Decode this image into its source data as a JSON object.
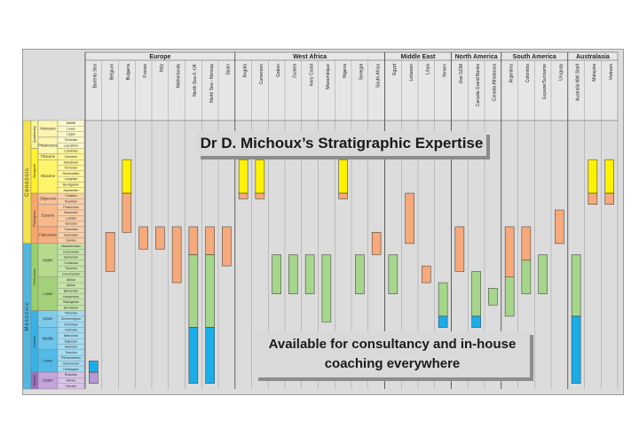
{
  "headline": "Dr D. Michoux’s Stratigraphic Expertise",
  "consult_line1": "Available for consultancy and in-house",
  "consult_line2": "coaching everywhere",
  "regions": [
    {
      "name": "Europe",
      "countries": [
        "Barents Sea",
        "Belgium",
        "Bulgaria",
        "France",
        "Italy",
        "Netherlands",
        "North Sea 6- UK",
        "North Sea - Norway",
        "Spain"
      ]
    },
    {
      "name": "West Africa",
      "countries": [
        "Angola",
        "Cameroon",
        "Gabon",
        "Guinea",
        "Ivory Coast",
        "Mozambique",
        "Nigeria",
        "Senegal",
        "South Africa"
      ]
    },
    {
      "name": "Middle East",
      "countries": [
        "Egypt",
        "Lebanon",
        "Libya",
        "Yemen"
      ]
    },
    {
      "name": "North America",
      "countries": [
        "Use GOM",
        "Canada Grand Banks",
        "Canada Athabasca"
      ]
    },
    {
      "name": "South America",
      "countries": [
        "Argentina",
        "Colombia",
        "Guyane/Suriname",
        "Uruguay"
      ]
    },
    {
      "name": "Australasia",
      "countries": [
        "Australia NW Shelf",
        "Malaysia",
        "Vietnam"
      ]
    }
  ],
  "eras": [
    {
      "name": "Cenozoic",
      "color": "#f4e34a"
    },
    {
      "name": "Mesozoic",
      "color": "#4fb7e0"
    }
  ],
  "periods": [
    {
      "name": "Quaternary",
      "color": "#f9f39a"
    },
    {
      "name": "Neogene",
      "color": "#fff22a"
    },
    {
      "name": "Paleogene",
      "color": "#f6a66b"
    },
    {
      "name": "Cretaceous",
      "color": "#9ccf6a"
    },
    {
      "name": "Jurassic",
      "color": "#3ab1e4"
    },
    {
      "name": "Triassic",
      "color": "#9e6fbb"
    }
  ],
  "epochs": [
    "Holocene",
    "Pleistocene",
    "Pliocene",
    "Miocene",
    "Oligocene",
    "Eocene",
    "Paleocene",
    "Upper",
    "Lower",
    "Upper",
    "Middle",
    "Lower",
    "Upper"
  ],
  "stages": [
    "Middle",
    "Lower",
    "Upper",
    "Tortonian",
    "Lacustrine",
    "Calabrian",
    "Zanclean",
    "Messinian",
    "Tortonian",
    "Serravallian",
    "Langhian",
    "Burdigalian",
    "Aquitanian",
    "Chattian",
    "Rupelian",
    "Priabonian",
    "Bartonian",
    "Lutetian",
    "Ypresian",
    "Thanetian",
    "Selandian",
    "Danian",
    "Maastrichtian",
    "Campanian",
    "Santonian",
    "Coniacian",
    "Turonian",
    "Cenomanian",
    "Albian",
    "Aptian",
    "Barremian",
    "Hauterivian",
    "Valanginian",
    "Berriasian",
    "Tithonian",
    "Kimmeridgian",
    "Oxfordian",
    "Callovian",
    "Bathonian",
    "Bajocian",
    "Aalenian",
    "Toarcian",
    "Pliensbachian",
    "Sinemurian",
    "Hettangian",
    "Rhaetian",
    "Norian",
    "Carnian"
  ],
  "colors": {
    "neogene": "#fff200",
    "paleogene": "#f6a97a",
    "cretaceous": "#a6d68b",
    "jurassic": "#19aeea",
    "triassic": "#b69ad4"
  }
}
